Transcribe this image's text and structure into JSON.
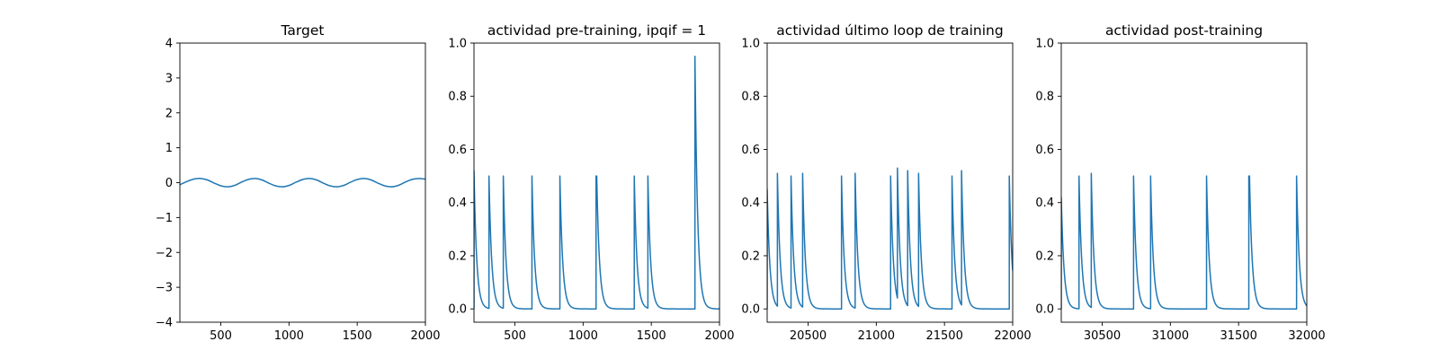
{
  "chart_data": [
    {
      "type": "line",
      "title": "Target",
      "xlabel": "",
      "ylabel": "",
      "xlim": [
        200,
        2000
      ],
      "ylim": [
        -4,
        4
      ],
      "xticks": [
        500,
        1000,
        1500,
        2000
      ],
      "yticks": [
        -4,
        -3,
        -2,
        -1,
        0,
        1,
        2,
        3,
        4
      ],
      "grid": false,
      "series": [
        {
          "color": "#1f77b4",
          "x": [
            200,
            250,
            300,
            350,
            400,
            450,
            500,
            550,
            600,
            650,
            700,
            750,
            800,
            850,
            900,
            950,
            1000,
            1050,
            1100,
            1150,
            1200,
            1250,
            1300,
            1350,
            1400,
            1450,
            1500,
            1550,
            1600,
            1650,
            1700,
            1750,
            1800,
            1850,
            1900,
            1950,
            2000
          ],
          "y": [
            -0.06,
            0.03,
            0.1,
            0.12,
            0.08,
            -0.01,
            -0.09,
            -0.12,
            -0.08,
            0.01,
            0.09,
            0.12,
            0.08,
            -0.01,
            -0.09,
            -0.12,
            -0.08,
            0.01,
            0.09,
            0.12,
            0.08,
            -0.01,
            -0.09,
            -0.12,
            -0.08,
            0.01,
            0.09,
            0.12,
            0.08,
            -0.01,
            -0.09,
            -0.12,
            -0.08,
            0.01,
            0.09,
            0.12,
            0.1
          ]
        }
      ]
    },
    {
      "type": "line",
      "title": "actividad pre-training, ipqif = 1",
      "xlabel": "",
      "ylabel": "",
      "xlim": [
        200,
        2000
      ],
      "ylim": [
        -0.05,
        1.0
      ],
      "xticks": [
        500,
        1000,
        1500,
        2000
      ],
      "yticks": [
        0.0,
        0.2,
        0.4,
        0.6,
        0.8,
        1.0
      ],
      "yticklabels": [
        "0.0",
        "0.2",
        "0.4",
        "0.6",
        "0.8",
        "1.0"
      ],
      "grid": false,
      "series": [
        {
          "color": "#1f77b4",
          "spike_times": [
            200,
            310,
            415,
            625,
            830,
            1095,
            1100,
            1375,
            1475,
            1820
          ],
          "spike_peaks": [
            0.52,
            0.5,
            0.5,
            0.5,
            0.5,
            0.5,
            0.5,
            0.5,
            0.5,
            0.95
          ],
          "decay_constant": 20,
          "baseline": 0.0
        }
      ]
    },
    {
      "type": "line",
      "title": "actividad último loop de training",
      "xlabel": "",
      "ylabel": "",
      "xlim": [
        20200,
        22000
      ],
      "ylim": [
        -0.05,
        1.0
      ],
      "xticks": [
        20500,
        21000,
        21500,
        22000
      ],
      "yticks": [
        0.0,
        0.2,
        0.4,
        0.6,
        0.8,
        1.0
      ],
      "yticklabels": [
        "0.0",
        "0.2",
        "0.4",
        "0.6",
        "0.8",
        "1.0"
      ],
      "grid": false,
      "series": [
        {
          "color": "#1f77b4",
          "spike_times": [
            20200,
            20275,
            20375,
            20460,
            20745,
            20845,
            21105,
            21155,
            21230,
            21310,
            21555,
            21625,
            21975
          ],
          "spike_peaks": [
            0.45,
            0.51,
            0.5,
            0.51,
            0.5,
            0.51,
            0.5,
            0.53,
            0.52,
            0.51,
            0.5,
            0.52,
            0.5
          ],
          "decay_constant": 20,
          "baseline": 0.0
        }
      ]
    },
    {
      "type": "line",
      "title": "actividad post-training",
      "xlabel": "",
      "ylabel": "",
      "xlim": [
        30200,
        32000
      ],
      "ylim": [
        -0.05,
        1.0
      ],
      "xticks": [
        30500,
        31000,
        31500,
        32000
      ],
      "yticks": [
        0.0,
        0.2,
        0.4,
        0.6,
        0.8,
        1.0
      ],
      "yticklabels": [
        "0.0",
        "0.2",
        "0.4",
        "0.6",
        "0.8",
        "1.0"
      ],
      "grid": false,
      "series": [
        {
          "color": "#1f77b4",
          "spike_times": [
            30200,
            30330,
            30420,
            30730,
            30855,
            31265,
            31575,
            31580,
            31925
          ],
          "spike_peaks": [
            0.42,
            0.5,
            0.51,
            0.5,
            0.5,
            0.5,
            0.5,
            0.5,
            0.5
          ],
          "decay_constant": 20,
          "baseline": 0.0
        }
      ]
    }
  ]
}
